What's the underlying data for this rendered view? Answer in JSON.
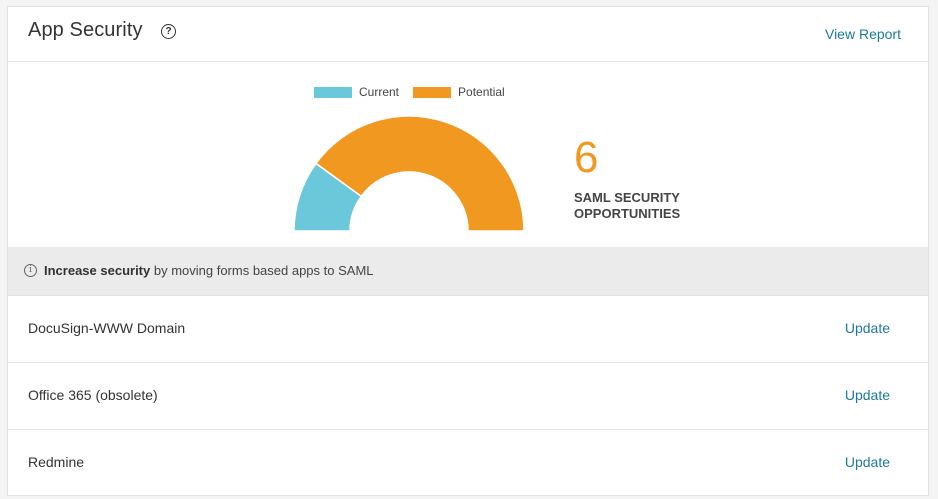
{
  "header": {
    "title": "App Security",
    "help_icon": "help-icon",
    "view_report_label": "View Report"
  },
  "chart_data": {
    "type": "pie",
    "style": "half-donut",
    "legend": [
      "Current",
      "Potential"
    ],
    "series": [
      {
        "name": "Current",
        "value": 20,
        "color": "#6bc8da"
      },
      {
        "name": "Potential",
        "value": 80,
        "color": "#f0981f"
      }
    ]
  },
  "stat": {
    "value": "6",
    "label_line1": "SAML SECURITY",
    "label_line2": "OPPORTUNITIES"
  },
  "info": {
    "icon": "info-icon",
    "bold": "Increase security",
    "text": " by moving forms based apps to SAML"
  },
  "apps": [
    {
      "name": "DocuSign-WWW Domain",
      "action": "Update"
    },
    {
      "name": "Office 365 (obsolete)",
      "action": "Update"
    },
    {
      "name": "Redmine",
      "action": "Update"
    }
  ],
  "colors": {
    "current": "#6bc8da",
    "potential": "#f0981f",
    "link": "#1c7a99"
  }
}
